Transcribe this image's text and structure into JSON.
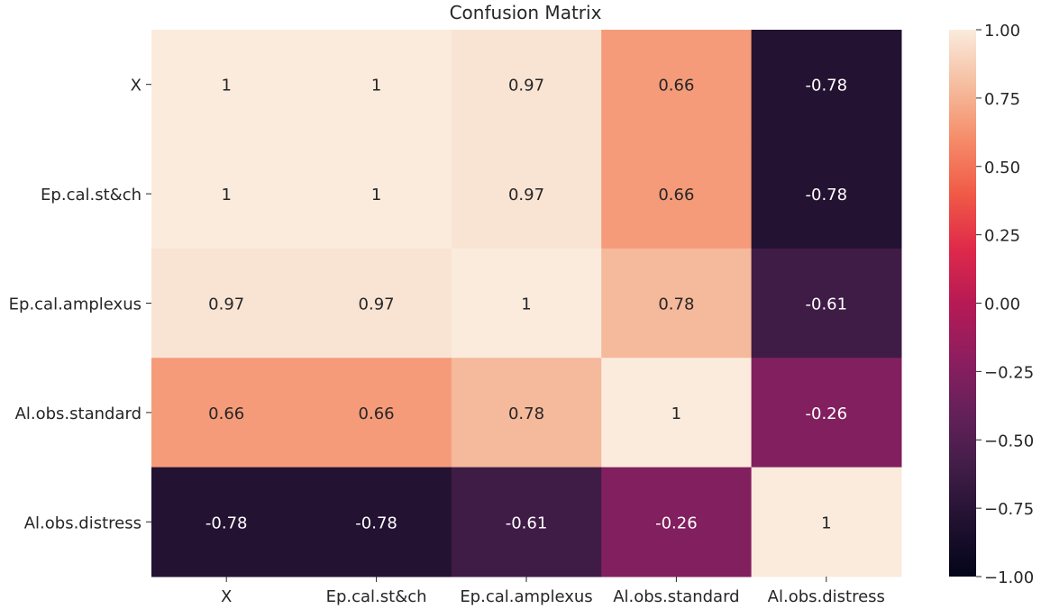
{
  "chart_data": {
    "type": "heatmap",
    "title": "Confusion Matrix",
    "xlabel": "",
    "ylabel": "",
    "x_labels": [
      "X",
      "Ep.cal.st&ch",
      "Ep.cal.amplexus",
      "Al.obs.standard",
      "Al.obs.distress"
    ],
    "y_labels": [
      "X",
      "Ep.cal.st&ch",
      "Ep.cal.amplexus",
      "Al.obs.standard",
      "Al.obs.distress"
    ],
    "cell_labels": [
      [
        "1",
        "1",
        "0.97",
        "0.66",
        "-0.78"
      ],
      [
        "1",
        "1",
        "0.97",
        "0.66",
        "-0.78"
      ],
      [
        "0.97",
        "0.97",
        "1",
        "0.78",
        "-0.61"
      ],
      [
        "0.66",
        "0.66",
        "0.78",
        "1",
        "-0.26"
      ],
      [
        "-0.78",
        "-0.78",
        "-0.61",
        "-0.26",
        "1"
      ]
    ],
    "values": [
      [
        1.0,
        1.0,
        0.97,
        0.66,
        -0.78
      ],
      [
        1.0,
        1.0,
        0.97,
        0.66,
        -0.78
      ],
      [
        0.97,
        0.97,
        1.0,
        0.78,
        -0.61
      ],
      [
        0.66,
        0.66,
        0.78,
        1.0,
        -0.26
      ],
      [
        -0.78,
        -0.78,
        -0.61,
        -0.26,
        1.0
      ]
    ],
    "colorbar": {
      "range": [
        -1.0,
        1.0
      ],
      "ticks": [
        "1.00",
        "0.75",
        "0.50",
        "0.25",
        "0.00",
        "−0.25",
        "−0.50",
        "−0.75",
        "−1.00"
      ],
      "tick_values": [
        1.0,
        0.75,
        0.5,
        0.25,
        0.0,
        -0.25,
        -0.5,
        -0.75,
        -1.0
      ],
      "colormap": "rocket"
    },
    "annotation_text_dark": "#262626",
    "annotation_text_light": "#ffffff"
  }
}
